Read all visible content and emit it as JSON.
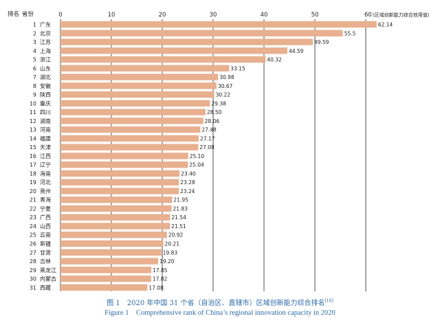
{
  "chart_data": {
    "type": "bar",
    "orientation": "horizontal",
    "header": {
      "rank_label": "排名",
      "province_label": "省份"
    },
    "unit_label": "(区域创新能力综合效用值)",
    "xlim": [
      0,
      60
    ],
    "ticks": [
      0,
      10,
      20,
      30,
      40,
      50,
      60
    ],
    "grid": true,
    "bar_color": "#e8b08f",
    "ranks": [
      1,
      2,
      3,
      4,
      5,
      6,
      7,
      8,
      9,
      10,
      11,
      12,
      13,
      14,
      15,
      16,
      17,
      18,
      19,
      20,
      21,
      22,
      23,
      24,
      25,
      26,
      27,
      28,
      29,
      30,
      31
    ],
    "categories": [
      "广东",
      "北京",
      "江苏",
      "上海",
      "浙江",
      "山东",
      "湖北",
      "安徽",
      "陕西",
      "重庆",
      "四川",
      "湖南",
      "河南",
      "福建",
      "天津",
      "江西",
      "辽宁",
      "海南",
      "河北",
      "贵州",
      "青海",
      "宁夏",
      "广西",
      "山西",
      "云南",
      "新疆",
      "甘肃",
      "吉林",
      "黑龙江",
      "内蒙古",
      "西藏"
    ],
    "values": [
      62.14,
      55.5,
      49.59,
      44.59,
      40.32,
      33.15,
      30.98,
      30.67,
      30.22,
      29.38,
      28.5,
      28.06,
      27.48,
      27.17,
      27.08,
      25.1,
      25.04,
      23.4,
      23.28,
      23.24,
      21.95,
      21.83,
      21.54,
      21.51,
      20.92,
      20.21,
      19.83,
      19.2,
      17.85,
      17.82,
      17.08
    ],
    "value_labels": [
      "62.14",
      "55.5",
      "49.59",
      "44.59",
      "40.32",
      "33.15",
      "30.98",
      "30.67",
      "30.22",
      "29.38",
      "28.50",
      "28.06",
      "27.48",
      "27.17",
      "27.08",
      "25.10",
      "25.04",
      "23.40",
      "23.28",
      "23.24",
      "21.95",
      "21.83",
      "21.54",
      "21.51",
      "20.92",
      "20.21",
      "19.83",
      "19.20",
      "17.85",
      "17.82",
      "17.08"
    ]
  },
  "caption": {
    "zh": "图 1　2020 年中国 31 个省（自治区、直辖市）区域创新能力综合排名",
    "zh_ref": "[10]",
    "en": "Figure 1　Comprehensive rank of China’s regional innovation capacity in 2020"
  }
}
